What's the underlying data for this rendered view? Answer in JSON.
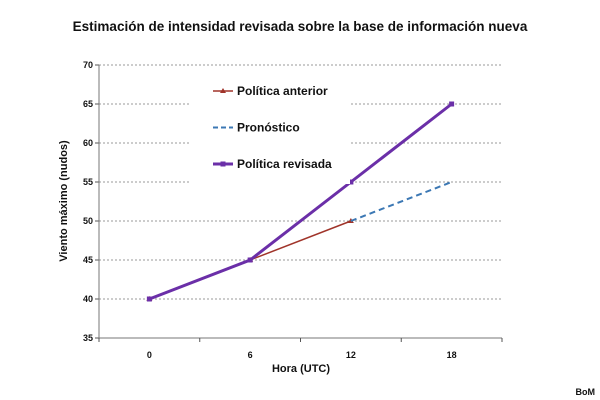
{
  "chart_data": {
    "type": "line",
    "title": "Estimación de intensidad revisada sobre la base de información nueva",
    "xlabel": "Hora (UTC)",
    "ylabel": "Viento máximo (nudos)",
    "categories": [
      "0",
      "6",
      "12",
      "18"
    ],
    "ylim": [
      35,
      70
    ],
    "yticks": [
      35,
      40,
      45,
      50,
      55,
      60,
      65,
      70
    ],
    "grid": true,
    "legend_position": "top-left",
    "series": [
      {
        "name": "Política anterior",
        "color": "#a0342a",
        "marker": "triangle",
        "dash": "solid",
        "points": [
          {
            "x": "0",
            "y": 40
          },
          {
            "x": "6",
            "y": 45
          },
          {
            "x": "12",
            "y": 50
          }
        ]
      },
      {
        "name": "Pronóstico",
        "color": "#3c78b4",
        "marker": "none",
        "dash": "dashed",
        "points": [
          {
            "x": "12",
            "y": 50
          },
          {
            "x": "18",
            "y": 55
          }
        ]
      },
      {
        "name": "Política  revisada",
        "color": "#6b2fa8",
        "marker": "square",
        "dash": "solid",
        "points": [
          {
            "x": "0",
            "y": 40
          },
          {
            "x": "6",
            "y": 45
          },
          {
            "x": "12",
            "y": 55
          },
          {
            "x": "18",
            "y": 65
          }
        ]
      }
    ]
  },
  "credit": "BoM"
}
